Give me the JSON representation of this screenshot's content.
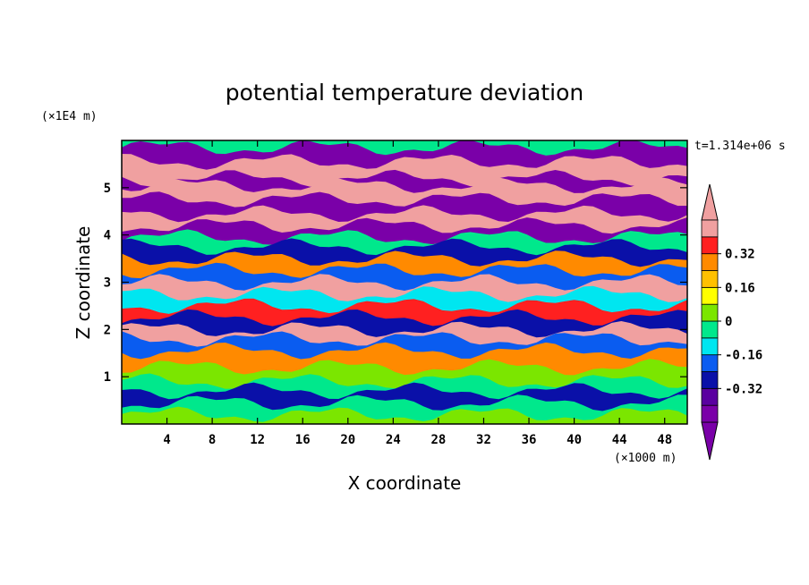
{
  "chart_data": {
    "type": "heatmap",
    "title": "potential temperature deviation",
    "xlabel": "X coordinate",
    "ylabel": "Z coordinate",
    "x_unit": "(×1000 m)",
    "y_unit": "(×1E4 m)",
    "time_label": "t=1.314e+06 s",
    "xlim": [
      0,
      50
    ],
    "ylim": [
      0,
      6
    ],
    "x_ticks": [
      4,
      8,
      12,
      16,
      20,
      24,
      28,
      32,
      36,
      40,
      44,
      48
    ],
    "y_ticks": [
      1,
      2,
      3,
      4,
      5
    ],
    "colorbar": {
      "levels": [
        -0.48,
        -0.4,
        -0.32,
        -0.24,
        -0.16,
        -0.08,
        0,
        0.08,
        0.16,
        0.24,
        0.32,
        0.4,
        0.48
      ],
      "labels": [
        "0.32",
        "0.16",
        "0",
        "-0.16",
        "-0.32"
      ],
      "label_values": [
        0.32,
        0.16,
        0,
        -0.16,
        -0.32
      ],
      "colors": [
        "#7a00a8",
        "#5a00a0",
        "#0a10a8",
        "#0a5cf0",
        "#00e6f0",
        "#00e88c",
        "#7be600",
        "#ffff00",
        "#ffc000",
        "#ff8a00",
        "#ff2020",
        "#f0a0a0"
      ],
      "extend": "both"
    },
    "bands": [
      {
        "z": 5.85,
        "level": 0
      },
      {
        "z": 5.55,
        "level": 11
      },
      {
        "z": 5.2,
        "level": 0
      },
      {
        "z": 5.05,
        "level": 11
      },
      {
        "z": 4.75,
        "level": 0
      },
      {
        "z": 4.45,
        "level": 11
      },
      {
        "z": 4.2,
        "level": 0
      },
      {
        "z": 3.95,
        "level": 5
      },
      {
        "z": 3.75,
        "level": 2
      },
      {
        "z": 3.5,
        "level": 9
      },
      {
        "z": 3.25,
        "level": 3
      },
      {
        "z": 3.0,
        "level": 11
      },
      {
        "z": 2.75,
        "level": 4
      },
      {
        "z": 2.5,
        "level": 10
      },
      {
        "z": 2.25,
        "level": 2
      },
      {
        "z": 2.0,
        "level": 11
      },
      {
        "z": 1.8,
        "level": 3
      },
      {
        "z": 1.55,
        "level": 9
      },
      {
        "z": 1.2,
        "level": 6
      },
      {
        "z": 0.9,
        "level": 5
      },
      {
        "z": 0.7,
        "level": 2
      },
      {
        "z": 0.45,
        "level": 5
      },
      {
        "z": 0.2,
        "level": 6
      }
    ]
  }
}
